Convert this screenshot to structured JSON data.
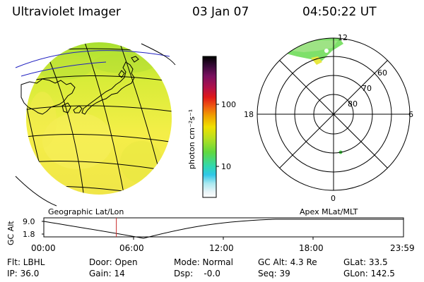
{
  "header": {
    "instrument": "Ultraviolet Imager",
    "date": "03 Jan 07",
    "time": "04:50:22 UT"
  },
  "colorbar": {
    "unit_label": "photon cm⁻²s⁻¹",
    "ticks": [
      "100",
      "10"
    ],
    "tick_values": [
      100,
      10
    ],
    "colors": [
      "#000000",
      "#3a0a3a",
      "#7a1060",
      "#b0104a",
      "#e01818",
      "#f06010",
      "#f0a000",
      "#f0e000",
      "#b8e020",
      "#60d840",
      "#30d8b0",
      "#30c8e8",
      "#a8e8f0",
      "#e8f4f8",
      "#ffffff"
    ]
  },
  "polar": {
    "mlt_labels": {
      "top": "12",
      "left": "18",
      "right": "6",
      "bottom": "0"
    },
    "lat_labels": [
      "60",
      "70",
      "80"
    ]
  },
  "timeline": {
    "left_caption": "Geographic Lat/Lon",
    "right_caption": "Apex MLat/MLT",
    "axis_label": "GC Alt",
    "y_ticks": [
      "9.0",
      "1.8"
    ],
    "y_range": [
      1.8,
      9.0
    ],
    "x_ticks": [
      "00:00",
      "06:00",
      "12:00",
      "18:00",
      "23:59"
    ],
    "current_time_hours": 4.84
  },
  "footer": {
    "filter": "Flt: LBHL",
    "door": "Door: Open",
    "mode": "Mode: Normal",
    "gc_alt": "GC Alt: 4.3 Re",
    "glat": "GLat: 33.5",
    "ip": "IP: 36.0",
    "gain": "Gain: 14",
    "dsp": "Dsp:    -0.0",
    "seq": "Seq: 39",
    "glon": "GLon: 142.5"
  }
}
